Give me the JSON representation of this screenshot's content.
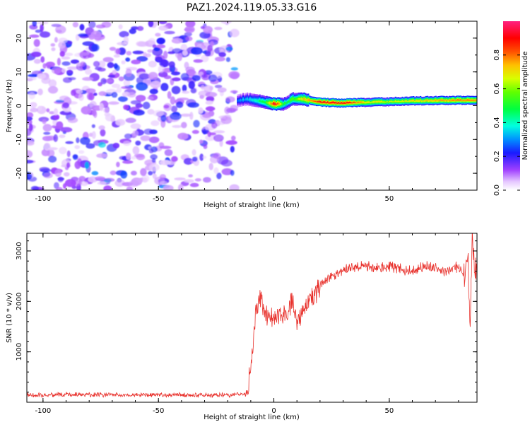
{
  "chart_data": [
    {
      "type": "heatmap",
      "title": "PAZ1.2024.119.05.33.G16",
      "xlabel": "Height of straight line (km)",
      "ylabel": "Frequency (Hz)",
      "xlim": [
        -107,
        88
      ],
      "ylim": [
        -25,
        25
      ],
      "xticks": [
        -100,
        -50,
        0,
        50
      ],
      "yticks": [
        -20,
        -10,
        0,
        10,
        20
      ],
      "colorbar": {
        "label": "Normalized spectral amplitude",
        "range": [
          0,
          1
        ],
        "ticks": [
          "0.0",
          "0.2",
          "0.4",
          "0.6",
          "0.8"
        ],
        "tick_values": [
          0.0,
          0.2,
          0.4,
          0.6,
          0.8
        ],
        "colormap": "gist_ncar_r"
      },
      "noise_region": {
        "x": [
          -107,
          -17
        ],
        "freq": [
          -25,
          25
        ],
        "amplitude": [
          0.0,
          0.2
        ]
      },
      "signal_trace": {
        "x": [
          -16,
          -12,
          -8,
          -4,
          0,
          4,
          8,
          12,
          16,
          20,
          30,
          40,
          50,
          60,
          70,
          80,
          88
        ],
        "freq": [
          1.5,
          2,
          1.5,
          1,
          0.5,
          0.5,
          2,
          2,
          1.5,
          1,
          0.8,
          1,
          1.2,
          1.4,
          1.5,
          1.6,
          1.6
        ],
        "amplitude": [
          0.3,
          0.35,
          0.4,
          0.5,
          0.95,
          0.5,
          0.55,
          0.7,
          0.8,
          0.9,
          0.92,
          0.7,
          0.65,
          0.7,
          0.75,
          0.8,
          0.8
        ]
      }
    },
    {
      "type": "line",
      "xlabel": "Height of straight line (km)",
      "ylabel": "SNR (10 * v/v)",
      "xlim": [
        -107,
        88
      ],
      "ylim": [
        0,
        3350
      ],
      "xticks": [
        -100,
        -50,
        0,
        50
      ],
      "yticks": [
        1000,
        2000,
        3000
      ],
      "color": "#e8312c",
      "x": [
        -107,
        -100,
        -90,
        -80,
        -70,
        -60,
        -50,
        -40,
        -30,
        -20,
        -12,
        -10,
        -8,
        -6,
        -4,
        -2,
        0,
        2,
        4,
        6,
        8,
        10,
        12,
        14,
        16,
        18,
        20,
        22,
        25,
        28,
        30,
        35,
        40,
        45,
        50,
        55,
        60,
        65,
        70,
        75,
        80,
        83,
        84,
        85,
        86,
        87,
        88
      ],
      "y": [
        150,
        140,
        150,
        145,
        150,
        140,
        150,
        145,
        140,
        145,
        160,
        700,
        1700,
        2050,
        1800,
        1700,
        1650,
        1750,
        1800,
        1700,
        2050,
        1600,
        1800,
        1900,
        2000,
        2150,
        2300,
        2400,
        2500,
        2550,
        2600,
        2650,
        2700,
        2650,
        2700,
        2650,
        2600,
        2700,
        2650,
        2600,
        2700,
        2500,
        2950,
        1400,
        3300,
        2600,
        2700
      ]
    }
  ]
}
